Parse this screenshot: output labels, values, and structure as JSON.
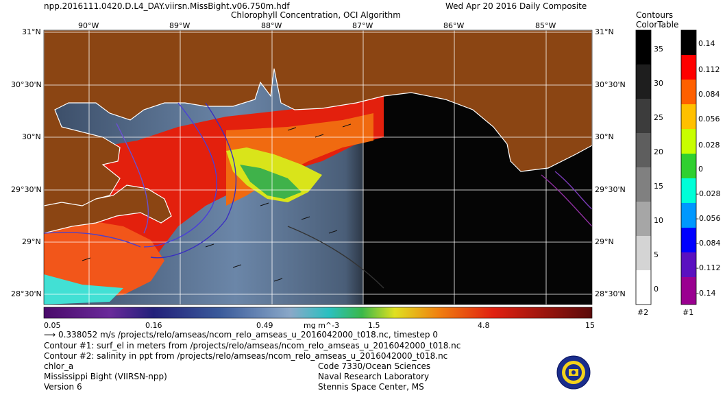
{
  "header": {
    "filename": "npp.2016111.0420.D.L4_DAY.viirsn.MissBight.v06.750m.hdf",
    "title": "Chlorophyll Concentration, OCI Algorithm",
    "date": "Wed Apr 20 2016 Daily Composite"
  },
  "map": {
    "lon_labels": [
      "90°W",
      "89°W",
      "88°W",
      "87°W",
      "86°W",
      "85°W"
    ],
    "lat_labels_left": [
      "31°N",
      "30°30'N",
      "30°N",
      "29°30'N",
      "29°N",
      "28°30'N"
    ],
    "lat_labels_right": [
      "31°N",
      "30°30'N",
      "30°N",
      "29°30'N",
      "29°N",
      "28°30'N"
    ],
    "colors": {
      "land": "#8b4513",
      "ocean_dark": "#050505",
      "grid": "#ffffff"
    }
  },
  "colorbar": {
    "labels": [
      "0.05",
      "0.16",
      "0.49",
      "mg m^-3",
      "1.5",
      "4.8",
      "15"
    ],
    "scale": "log"
  },
  "legend_text": {
    "vector_line": "0.338052 m/s /projects/relo/amseas/ncom_relo_amseas_u_2016042000_t018.nc, timestep 0",
    "contour1": "Contour #1: surf_el in meters from /projects/relo/amseas/ncom_relo_amseas_u_2016042000_t018.nc",
    "contour2": "Contour #2: salinity in ppt from /projects/relo/amseas/ncom_relo_amseas_u_2016042000_t018.nc",
    "product": "chlor_a",
    "region": "Mississippi Bight (VIIRSN-npp)",
    "version": "Version 6",
    "org_code": "Code 7330/Ocean Sciences",
    "org_name": "Naval Research Laboratory",
    "org_place": "Stennis Space Center, MS"
  },
  "contours_colortable": {
    "header_line1": "Contours",
    "header_line2": "ColorTable",
    "table2": {
      "labels": [
        "35",
        "30",
        "25",
        "20",
        "15",
        "10",
        "5",
        "0"
      ],
      "footer": "#2"
    },
    "table1": {
      "labels": [
        "0.14",
        "0.112",
        "0.084",
        "0.056",
        "0.028",
        "0",
        "-0.028",
        "-0.056",
        "-0.084",
        "-0.112",
        "-0.14"
      ],
      "footer": "#1"
    }
  }
}
